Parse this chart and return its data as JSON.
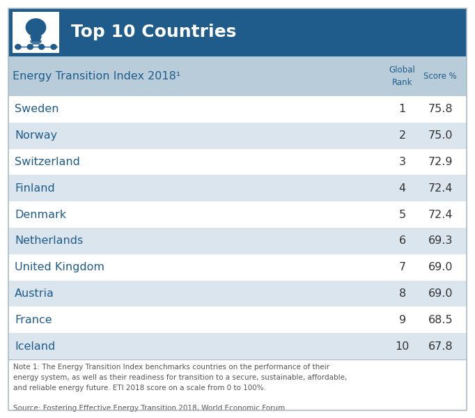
{
  "title": "Top 10 Countries",
  "subtitle": "Energy Transition Index 2018¹",
  "countries": [
    "Sweden",
    "Norway",
    "Switzerland",
    "Finland",
    "Denmark",
    "Netherlands",
    "United Kingdom",
    "Austria",
    "France",
    "Iceland"
  ],
  "ranks": [
    "1",
    "2",
    "3",
    "4",
    "5",
    "6",
    "7",
    "8",
    "9",
    "10"
  ],
  "scores": [
    "75.8",
    "75.0",
    "72.9",
    "72.4",
    "72.4",
    "69.3",
    "69.0",
    "69.0",
    "68.5",
    "67.8"
  ],
  "header_bg_dark": "#1f5c8b",
  "header_bg_light": "#b8cdd9",
  "row_bg_light": "#dae5ed",
  "row_bg_white": "#ffffff",
  "text_blue": "#1f5c8b",
  "text_dark": "#333333",
  "note_text": "Note 1: The Energy Transition Index benchmarks countries on the performance of their\nenergy system, as well as their readiness for transition to a secure, sustainable, affordable,\nand reliable energy future. ETI 2018 score on a scale from 0 to 100%.",
  "source_text": "Source: Fostering Effective Energy Transition 2018, World Economic Forum",
  "fig_bg": "#ffffff",
  "border_color": "#aabbc8"
}
